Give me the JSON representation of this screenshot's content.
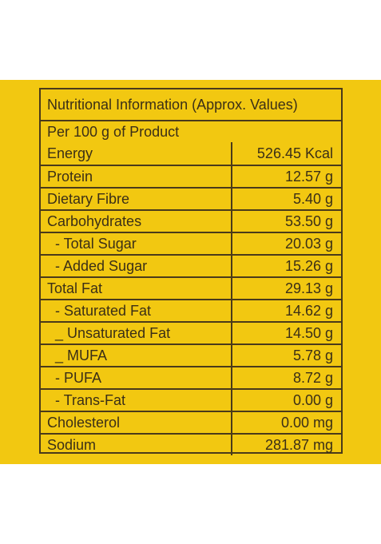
{
  "colors": {
    "panel": "#f2c811",
    "border": "#4a3a1a",
    "text": "#3b2f17",
    "page": "#ffffff"
  },
  "table": {
    "title": "Nutritional Information (Approx. Values)",
    "subtitle": "Per 100 g of Product",
    "rows": [
      {
        "label": "Energy",
        "value": "526.45 Kcal"
      },
      {
        "label": "Protein",
        "value": "12.57 g"
      },
      {
        "label": "Dietary Fibre",
        "value": "5.40 g"
      },
      {
        "label": "Carbohydrates",
        "value": "53.50 g"
      },
      {
        "label": "  - Total Sugar",
        "value": "20.03 g"
      },
      {
        "label": "  - Added Sugar",
        "value": "15.26 g"
      },
      {
        "label": "Total Fat",
        "value": "29.13 g"
      },
      {
        "label": "  - Saturated Fat",
        "value": "14.62 g"
      },
      {
        "label": "  _ Unsaturated Fat",
        "value": "14.50 g"
      },
      {
        "label": "  _ MUFA",
        "value": "5.78 g"
      },
      {
        "label": "  - PUFA",
        "value": "8.72 g"
      },
      {
        "label": "  - Trans-Fat",
        "value": "0.00 g"
      },
      {
        "label": "Cholesterol",
        "value": "0.00 mg"
      },
      {
        "label": "Sodium",
        "value": "281.87 mg"
      }
    ]
  }
}
